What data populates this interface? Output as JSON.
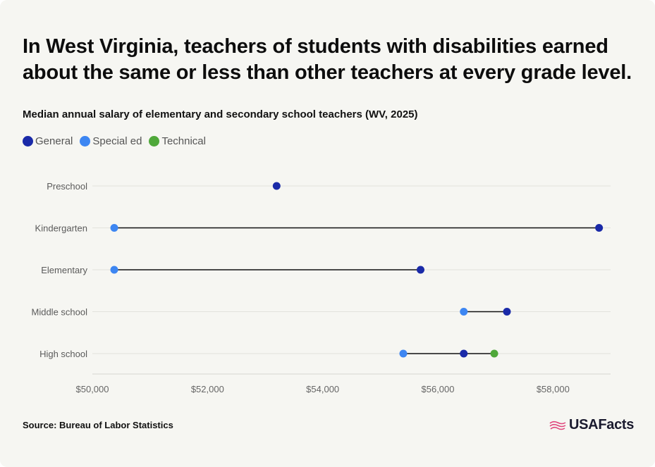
{
  "title": "In West Virginia, teachers of students with disabilities earned about the same or less than other teachers at every grade level.",
  "subtitle": "Median annual salary of elementary and secondary school teachers (WV, 2025)",
  "legend": [
    {
      "label": "General",
      "color": "#1a2aa8"
    },
    {
      "label": "Special ed",
      "color": "#3d86f2"
    },
    {
      "label": "Technical",
      "color": "#4fa83a"
    }
  ],
  "source": "Source: Bureau of Labor Statistics",
  "brand": {
    "name": "USAFacts",
    "icon": "usa-flag-icon"
  },
  "chart_data": {
    "type": "dot-range",
    "categories": [
      "Preschool",
      "Kindergarten",
      "Elementary",
      "Middle school",
      "High school"
    ],
    "series": [
      {
        "name": "General",
        "values": [
          53200,
          58800,
          55700,
          57200,
          56450
        ]
      },
      {
        "name": "Special ed",
        "values": [
          null,
          50380,
          50380,
          56450,
          55400
        ]
      },
      {
        "name": "Technical",
        "values": [
          null,
          null,
          null,
          null,
          56980
        ]
      }
    ],
    "xlim": [
      50000,
      59000
    ],
    "xticks": [
      50000,
      52000,
      54000,
      56000,
      58000
    ],
    "xtick_labels": [
      "$50,000",
      "$52,000",
      "$54,000",
      "$56,000",
      "$58,000"
    ],
    "grid": true
  }
}
